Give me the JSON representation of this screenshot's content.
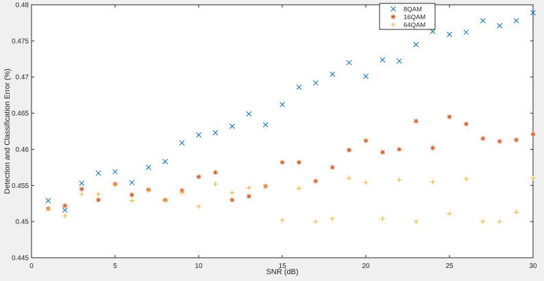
{
  "chart_data": {
    "type": "scatter",
    "title": "",
    "xlabel": "SNR (dB)",
    "ylabel": "Detection and Classification Error (%)",
    "xlim": [
      0,
      30
    ],
    "ylim": [
      0.445,
      0.48
    ],
    "xticks": [
      0,
      5,
      10,
      15,
      20,
      25,
      30
    ],
    "yticks": [
      0.445,
      0.45,
      0.455,
      0.46,
      0.465,
      0.47,
      0.475,
      0.48
    ],
    "xtick_labels": [
      "0",
      "5",
      "10",
      "15",
      "20",
      "25",
      "30"
    ],
    "ytick_labels": [
      "0.445",
      "0.45",
      "0.455",
      "0.46",
      "0.465",
      "0.47",
      "0.475",
      "0.48"
    ],
    "grid": false,
    "legend_position": "top-right",
    "x": [
      1,
      2,
      3,
      4,
      5,
      6,
      7,
      8,
      9,
      10,
      11,
      12,
      13,
      14,
      15,
      16,
      17,
      18,
      19,
      20,
      21,
      22,
      23,
      24,
      25,
      26,
      27,
      28,
      29,
      30
    ],
    "series": [
      {
        "name": "8QAM",
        "marker": "x",
        "color": "#0072BD",
        "values": [
          0.4529,
          0.4516,
          0.4553,
          0.4567,
          0.4569,
          0.4554,
          0.4575,
          0.4583,
          0.4609,
          0.462,
          0.4623,
          0.4632,
          0.4649,
          0.4634,
          0.4662,
          0.4686,
          0.4692,
          0.4704,
          0.472,
          0.4701,
          0.4724,
          0.4722,
          0.4745,
          0.4763,
          0.4759,
          0.4762,
          0.4778,
          0.4771,
          0.4778,
          0.4789
        ]
      },
      {
        "name": "16QAM",
        "marker": "*",
        "color": "#D95319",
        "values": [
          0.4518,
          0.4522,
          0.4545,
          0.453,
          0.4552,
          0.4537,
          0.4544,
          0.453,
          0.4543,
          0.4562,
          0.4568,
          0.453,
          0.4535,
          0.4549,
          0.4582,
          0.4582,
          0.4556,
          0.4575,
          0.4599,
          0.4612,
          0.4596,
          0.46,
          0.4639,
          0.4602,
          0.4645,
          0.4635,
          0.4615,
          0.4611,
          0.4613,
          0.4621
        ]
      },
      {
        "name": "64QAM",
        "marker": "+",
        "color": "#EDB120",
        "values": [
          0.4518,
          0.4508,
          0.4538,
          0.4538,
          0.455,
          0.4529,
          0.4543,
          0.4529,
          0.454,
          0.4521,
          0.4552,
          0.454,
          0.4547,
          0.4549,
          0.4502,
          0.4546,
          0.45,
          0.4504,
          0.456,
          0.4554,
          0.4504,
          0.4558,
          0.45,
          0.4555,
          0.4511,
          0.4559,
          0.45,
          0.45,
          0.4513,
          0.456
        ]
      }
    ]
  }
}
